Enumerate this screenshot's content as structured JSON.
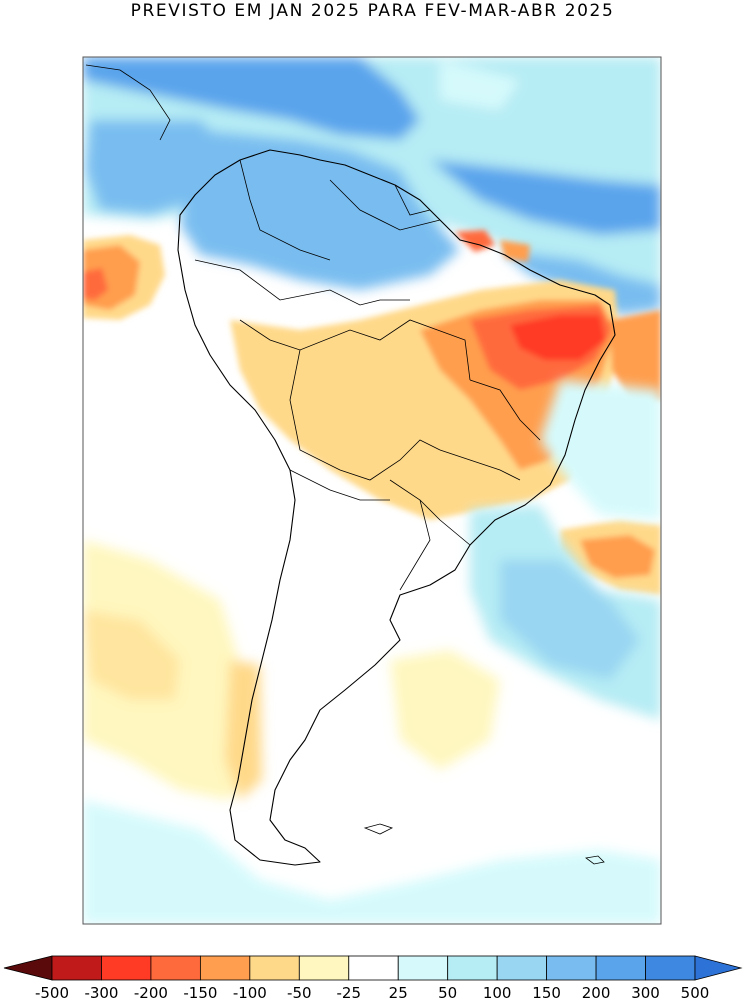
{
  "title": "PREVISTO EM JAN 2025 PARA FEV-MAR-ABR 2025",
  "colors": {
    "frame": "#555555",
    "coast": "#000000",
    "background": "#ffffff"
  },
  "colorbar": {
    "bins": [
      {
        "color": "#5a0a0a"
      },
      {
        "color": "#c01a1a"
      },
      {
        "color": "#ff3b26"
      },
      {
        "color": "#ff6a3c"
      },
      {
        "color": "#ff9e4e"
      },
      {
        "color": "#ffd98a"
      },
      {
        "color": "#fff7bf"
      },
      {
        "color": "#ffffff"
      },
      {
        "color": "#d6fafc"
      },
      {
        "color": "#b6ecf4"
      },
      {
        "color": "#99d6f2"
      },
      {
        "color": "#79bdf0"
      },
      {
        "color": "#5aa4ec"
      },
      {
        "color": "#3f88e2"
      },
      {
        "color": "#2d72d6"
      }
    ],
    "labels": [
      "-500",
      "-300",
      "-200",
      "-150",
      "-100",
      "-50",
      "-25",
      "25",
      "50",
      "100",
      "150",
      "200",
      "300",
      "500"
    ]
  },
  "anomaly_field": [
    {
      "desc": "deep-blue-north-pacific",
      "color": "#5aa4ec"
    },
    {
      "desc": "light-blue",
      "color": "#b6ecf4"
    },
    {
      "desc": "blue",
      "color": "#79bdf0"
    },
    {
      "desc": "pale-cyan",
      "color": "#d6fafc"
    },
    {
      "desc": "orange",
      "color": "#ff9e4e"
    },
    {
      "desc": "red",
      "color": "#ff3b26"
    },
    {
      "desc": "yellow",
      "color": "#ffd98a"
    },
    {
      "desc": "pale-yellow",
      "color": "#fff7bf"
    }
  ]
}
